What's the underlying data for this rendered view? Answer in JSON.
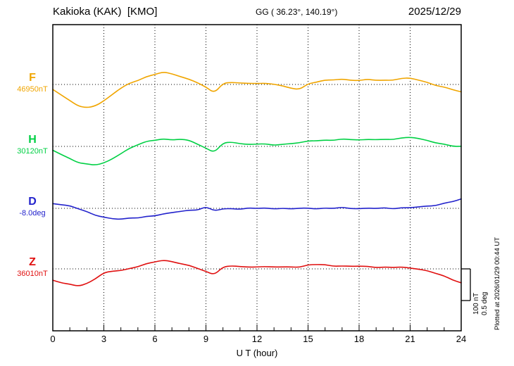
{
  "header": {
    "station": "Kakioka (KAK)  [KMO]",
    "coords": "GG ( 36.23°, 140.19°)",
    "date": "2025/12/29"
  },
  "axis": {
    "xlabel": "U T (hour)",
    "x_min": 0,
    "x_max": 24,
    "x_ticks": [
      0,
      3,
      6,
      9,
      12,
      15,
      18,
      21,
      24
    ]
  },
  "scalebar": {
    "label_nt": "100 nT",
    "label_deg": "0.5 deg"
  },
  "footer": {
    "plotted": "Plotted at 2026/01/29 00:44 UT"
  },
  "chart_data": {
    "type": "line",
    "title": "Kakioka (KAK) [KMO] magnetogram 2025/12/29",
    "xlabel": "U T (hour)",
    "x_range": [
      0,
      24
    ],
    "grid": "dotted vertical every 3 h, dotted horizontal baseline per component",
    "sample_interval_hours": 0.5,
    "scale": {
      "nT_per_div": 100,
      "deg_per_div": 0.5
    },
    "series": [
      {
        "name": "F",
        "color": "#f0a500",
        "unit": "nT",
        "baseline_value": 46950,
        "baseline_label": "46950nT",
        "values": [
          -15,
          -32,
          -52,
          -68,
          -75,
          -66,
          -52,
          -32,
          -12,
          3,
          14,
          24,
          32,
          38,
          34,
          26,
          16,
          6,
          -10,
          -26,
          4,
          7,
          4,
          2,
          5,
          3,
          2,
          -6,
          -12,
          -15,
          2,
          8,
          12,
          15,
          17,
          14,
          12,
          15,
          14,
          13,
          15,
          18,
          20,
          14,
          7,
          -2,
          -10,
          -16,
          -24
        ]
      },
      {
        "name": "H",
        "color": "#00d044",
        "unit": "nT",
        "baseline_value": 30120,
        "baseline_label": "30120nT",
        "values": [
          -12,
          -26,
          -40,
          -50,
          -56,
          -58,
          -54,
          -40,
          -22,
          -6,
          6,
          14,
          20,
          24,
          21,
          23,
          18,
          8,
          -6,
          -18,
          10,
          13,
          9,
          6,
          9,
          6,
          4,
          6,
          10,
          12,
          16,
          18,
          19,
          21,
          23,
          21,
          20,
          22,
          23,
          21,
          22,
          26,
          30,
          26,
          18,
          11,
          6,
          2,
          0
        ]
      },
      {
        "name": "D",
        "color": "#2222cc",
        "unit": "deg",
        "baseline_value": -8.0,
        "baseline_label": "-8.0deg",
        "values": [
          0.07,
          0.06,
          0.04,
          0.0,
          -0.06,
          -0.11,
          -0.14,
          -0.16,
          -0.17,
          -0.16,
          -0.15,
          -0.13,
          -0.11,
          -0.09,
          -0.07,
          -0.05,
          -0.03,
          -0.02,
          0.02,
          -0.04,
          -0.01,
          0.0,
          -0.01,
          0.0,
          0.0,
          0.0,
          0.0,
          0.0,
          -0.01,
          0.0,
          0.0,
          0.0,
          0.0,
          0.0,
          0.01,
          0.0,
          0.0,
          0.0,
          0.0,
          0.0,
          0.0,
          0.01,
          0.01,
          0.02,
          0.03,
          0.05,
          0.08,
          0.11,
          0.14
        ]
      },
      {
        "name": "Z",
        "color": "#e01010",
        "unit": "nT",
        "baseline_value": 36010,
        "baseline_label": "36010nT",
        "values": [
          -35,
          -44,
          -50,
          -54,
          -47,
          -30,
          -13,
          -8,
          -5,
          1,
          8,
          15,
          22,
          27,
          24,
          17,
          10,
          2,
          -9,
          -17,
          6,
          9,
          7,
          5,
          8,
          6,
          6,
          5,
          7,
          6,
          12,
          14,
          12,
          10,
          9,
          8,
          8,
          7,
          6,
          5,
          5,
          4,
          3,
          0,
          -6,
          -14,
          -24,
          -34,
          -44
        ]
      }
    ]
  }
}
